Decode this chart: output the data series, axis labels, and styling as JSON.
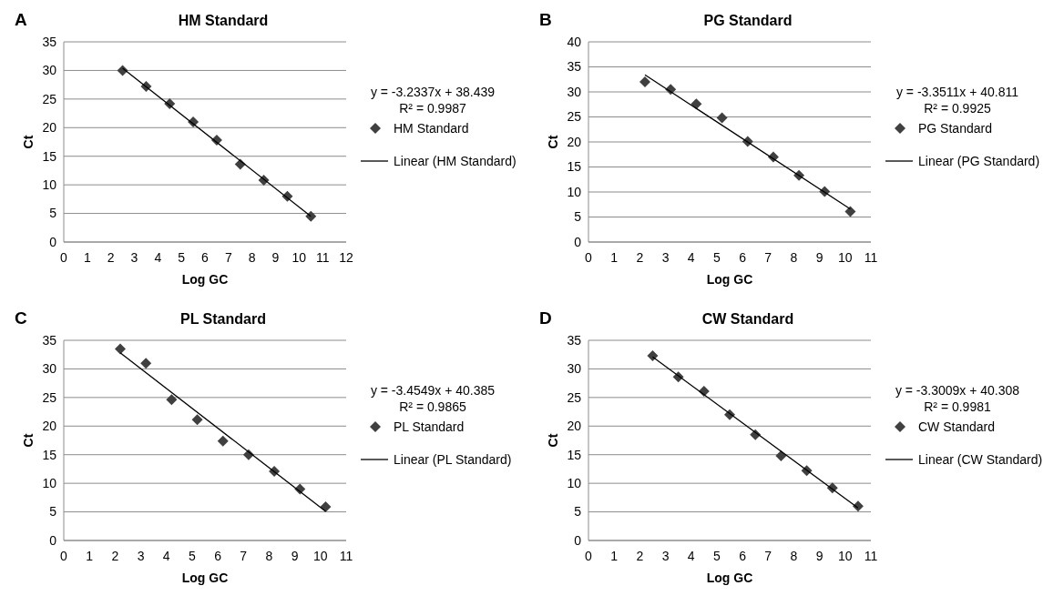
{
  "chart_data": [
    {
      "type": "scatter",
      "title": "HM Standard",
      "xlabel": "Log GC",
      "ylabel": "Ct",
      "xlim": [
        0,
        12
      ],
      "xticks": [
        0,
        1,
        2,
        3,
        4,
        5,
        6,
        7,
        8,
        9,
        10,
        11,
        12
      ],
      "ylim": [
        0,
        35
      ],
      "yticks": [
        0,
        5,
        10,
        15,
        20,
        25,
        30,
        35
      ],
      "grid": "y",
      "legend": "right",
      "annotations": [
        "A",
        "y = -3.2337x + 38.439",
        "R² = 0.9987"
      ],
      "series": [
        {
          "name": "HM Standard",
          "marker": "diamond",
          "color": "#404040",
          "x": [
            2.5,
            3.5,
            4.5,
            5.5,
            6.5,
            7.5,
            8.5,
            9.5,
            10.5
          ],
          "values": [
            30,
            27.2,
            24.2,
            21,
            17.8,
            13.6,
            10.8,
            8,
            4.5
          ]
        },
        {
          "name": "Linear (HM Standard)",
          "type": "line",
          "marker": "none",
          "color": "#000000",
          "x": [
            2.5,
            10.5
          ],
          "values": [
            30.4,
            4.5
          ]
        }
      ]
    },
    {
      "type": "scatter",
      "title": "PG Standard",
      "xlabel": "Log GC",
      "ylabel": "Ct",
      "xlim": [
        0,
        11
      ],
      "xticks": [
        0,
        1,
        2,
        3,
        4,
        5,
        6,
        7,
        8,
        9,
        10,
        11
      ],
      "ylim": [
        0,
        40
      ],
      "yticks": [
        0,
        5,
        10,
        15,
        20,
        25,
        30,
        35,
        40
      ],
      "grid": "y",
      "legend": "right",
      "annotations": [
        "B",
        "y = -3.3511x + 40.811",
        "R² = 0.9925"
      ],
      "series": [
        {
          "name": "PG Standard",
          "marker": "diamond",
          "color": "#404040",
          "x": [
            2.2,
            3.2,
            4.2,
            5.2,
            6.2,
            7.2,
            8.2,
            9.2,
            10.2
          ],
          "values": [
            32,
            30.5,
            27.6,
            24.8,
            20.1,
            17,
            13.3,
            10.1,
            6.1
          ]
        },
        {
          "name": "Linear (PG Standard)",
          "type": "line",
          "marker": "none",
          "color": "#000000",
          "x": [
            2.2,
            10.2
          ],
          "values": [
            33.4,
            6.6
          ]
        }
      ]
    },
    {
      "type": "scatter",
      "title": "PL Standard",
      "xlabel": "Log GC",
      "ylabel": "Ct",
      "xlim": [
        0,
        11
      ],
      "xticks": [
        0,
        1,
        2,
        3,
        4,
        5,
        6,
        7,
        8,
        9,
        10,
        11
      ],
      "ylim": [
        0,
        35
      ],
      "yticks": [
        0,
        5,
        10,
        15,
        20,
        25,
        30,
        35
      ],
      "grid": "y",
      "legend": "right",
      "annotations": [
        "C",
        "y = -3.4549x + 40.385",
        "R² = 0.9865"
      ],
      "series": [
        {
          "name": "PL Standard",
          "marker": "diamond",
          "color": "#404040",
          "x": [
            2.2,
            3.2,
            4.2,
            5.2,
            6.2,
            7.2,
            8.2,
            9.2,
            10.2
          ],
          "values": [
            33.5,
            31,
            24.6,
            21.1,
            17.4,
            15,
            12.1,
            9,
            5.9
          ]
        },
        {
          "name": "Linear (PL Standard)",
          "type": "line",
          "marker": "none",
          "color": "#000000",
          "x": [
            2.2,
            10.2
          ],
          "values": [
            32.8,
            5.1
          ]
        }
      ]
    },
    {
      "type": "scatter",
      "title": "CW Standard",
      "xlabel": "Log GC",
      "ylabel": "Ct",
      "xlim": [
        0,
        11
      ],
      "xticks": [
        0,
        1,
        2,
        3,
        4,
        5,
        6,
        7,
        8,
        9,
        10,
        11
      ],
      "ylim": [
        0,
        35
      ],
      "yticks": [
        0,
        5,
        10,
        15,
        20,
        25,
        30,
        35
      ],
      "grid": "y",
      "legend": "right",
      "annotations": [
        "D",
        "y = -3.3009x + 40.308",
        "R² = 0.9981"
      ],
      "series": [
        {
          "name": "CW Standard",
          "marker": "diamond",
          "color": "#404040",
          "x": [
            2.5,
            3.5,
            4.5,
            5.5,
            6.5,
            7.5,
            8.5,
            9.5,
            10.5
          ],
          "values": [
            32.3,
            28.6,
            26.1,
            22,
            18.5,
            14.8,
            12.2,
            9.2,
            6
          ]
        },
        {
          "name": "Linear (CW Standard)",
          "type": "line",
          "marker": "none",
          "color": "#000000",
          "x": [
            2.5,
            10.5
          ],
          "values": [
            32.1,
            5.7
          ]
        }
      ]
    }
  ]
}
